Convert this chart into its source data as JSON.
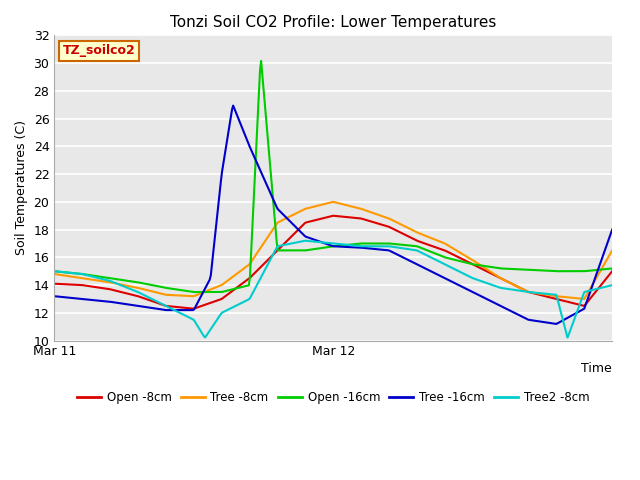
{
  "title": "Tonzi Soil CO2 Profile: Lower Temperatures",
  "ylabel": "Soil Temperatures (C)",
  "xlabel": "Time",
  "watermark": "TZ_soilco2",
  "ylim": [
    10,
    32
  ],
  "yticks": [
    10,
    12,
    14,
    16,
    18,
    20,
    22,
    24,
    26,
    28,
    30,
    32
  ],
  "xlim": [
    0,
    100
  ],
  "xtick_positions": [
    0,
    50,
    100
  ],
  "xtick_labels": [
    "Mar 11",
    "Mar 12",
    ""
  ],
  "fig_bg_color": "#ffffff",
  "plot_bg_color": "#e8e8e8",
  "grid_color": "#ffffff",
  "series": {
    "Open_8cm": {
      "color": "#dd0000",
      "label": "Open -8cm",
      "lw": 1.5
    },
    "Tree_8cm": {
      "color": "#ff9900",
      "label": "Tree -8cm",
      "lw": 1.5
    },
    "Open_16cm": {
      "color": "#00cc00",
      "label": "Open -16cm",
      "lw": 1.5
    },
    "Tree_16cm": {
      "color": "#0000cc",
      "label": "Tree -16cm",
      "lw": 1.5
    },
    "Tree2_8cm": {
      "color": "#00cccc",
      "label": "Tree2 -8cm",
      "lw": 1.5
    }
  },
  "Open_8cm_x": [
    0,
    5,
    10,
    15,
    20,
    25,
    30,
    35,
    40,
    45,
    50,
    55,
    60,
    65,
    70,
    75,
    80,
    85,
    90,
    95,
    100
  ],
  "Open_8cm_y": [
    14.1,
    14.0,
    13.7,
    13.2,
    12.5,
    12.3,
    13.0,
    14.5,
    16.5,
    18.5,
    19.0,
    18.8,
    18.2,
    17.2,
    16.5,
    15.5,
    14.5,
    13.5,
    13.0,
    12.5,
    15.0
  ],
  "Tree_8cm_x": [
    0,
    5,
    10,
    15,
    20,
    25,
    30,
    35,
    40,
    45,
    50,
    55,
    60,
    65,
    70,
    75,
    80,
    85,
    90,
    95,
    100
  ],
  "Tree_8cm_y": [
    14.8,
    14.5,
    14.2,
    13.8,
    13.3,
    13.2,
    14.0,
    15.5,
    18.5,
    19.5,
    20.0,
    19.5,
    18.8,
    17.8,
    17.0,
    15.8,
    14.5,
    13.5,
    13.2,
    13.0,
    16.5
  ],
  "Open_16cm_x": [
    0,
    5,
    10,
    15,
    20,
    25,
    30,
    35,
    37,
    40,
    45,
    50,
    55,
    60,
    65,
    70,
    75,
    80,
    85,
    90,
    95,
    100
  ],
  "Open_16cm_y": [
    15.0,
    14.8,
    14.5,
    14.2,
    13.8,
    13.5,
    13.5,
    14.0,
    30.5,
    16.5,
    16.5,
    16.8,
    17.0,
    17.0,
    16.8,
    16.0,
    15.5,
    15.2,
    15.1,
    15.0,
    15.0,
    15.2
  ],
  "Tree_16cm_x": [
    0,
    5,
    10,
    15,
    20,
    25,
    28,
    30,
    32,
    35,
    40,
    45,
    50,
    55,
    60,
    65,
    70,
    75,
    80,
    85,
    90,
    95,
    100
  ],
  "Tree_16cm_y": [
    13.2,
    13.0,
    12.8,
    12.5,
    12.2,
    12.2,
    14.5,
    22.0,
    27.0,
    24.0,
    19.5,
    17.5,
    16.8,
    16.7,
    16.5,
    15.5,
    14.5,
    13.5,
    12.5,
    11.5,
    11.2,
    12.3,
    18.0
  ],
  "Tree2_8cm_x": [
    0,
    5,
    10,
    15,
    20,
    25,
    27,
    30,
    35,
    40,
    45,
    50,
    55,
    60,
    65,
    70,
    75,
    80,
    85,
    90,
    92,
    95,
    100
  ],
  "Tree2_8cm_y": [
    15.0,
    14.8,
    14.3,
    13.5,
    12.5,
    11.5,
    10.2,
    12.0,
    13.0,
    16.8,
    17.2,
    17.0,
    16.8,
    16.8,
    16.5,
    15.5,
    14.5,
    13.8,
    13.5,
    13.3,
    10.2,
    13.5,
    14.0
  ]
}
